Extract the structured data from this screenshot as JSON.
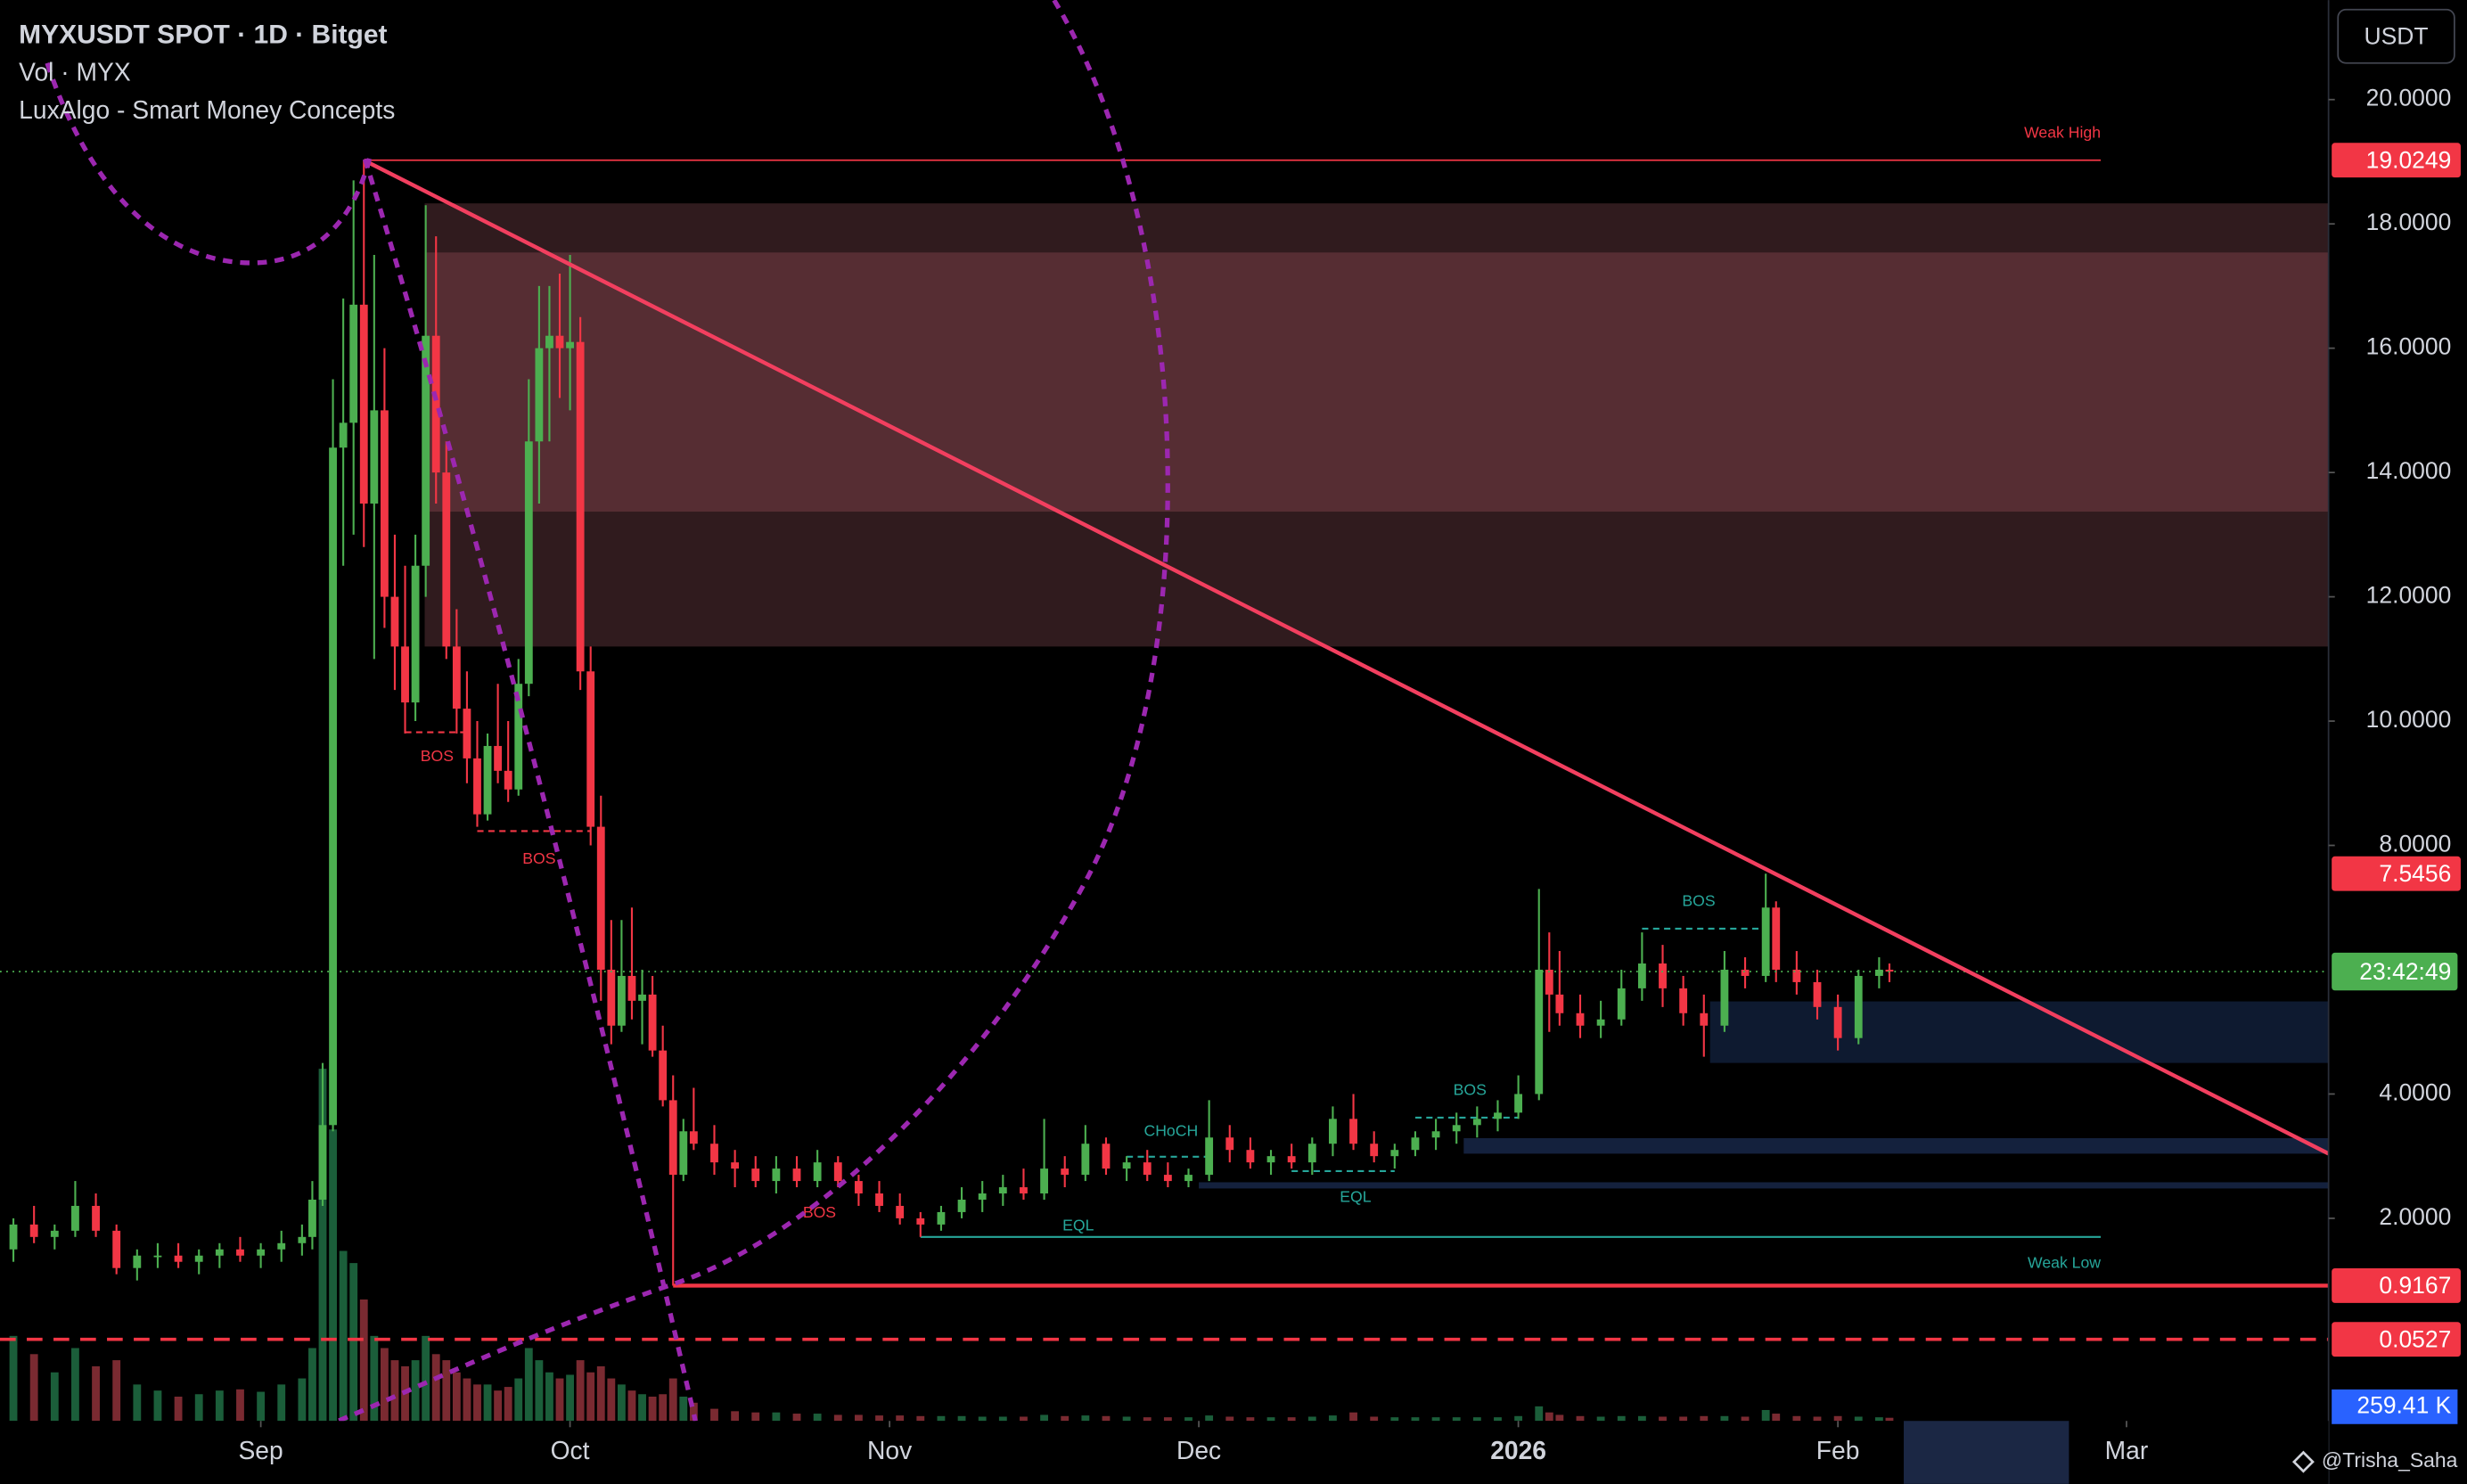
{
  "chart_data": {
    "type": "candlestick",
    "title": "MYXUSDT SPOT · 1D · Bitget",
    "volume_title": "Vol · MYX",
    "indicator": "LuxAlgo - Smart Money Concepts",
    "currency_button": "USDT",
    "watermark": "@Trisha_Saha",
    "countdown": "23:42:49",
    "up_color": "#4caf50",
    "down_color": "#f23645",
    "volume_up_color": "#1b5e3a",
    "volume_down_color": "#7a2a31",
    "x": [
      -24,
      -22,
      -20,
      -18,
      -16,
      -14,
      -12,
      -10,
      -8,
      -6,
      -4,
      -2,
      0,
      2,
      4,
      5,
      6,
      7,
      8,
      9,
      10,
      11,
      12,
      13,
      14,
      15,
      16,
      17,
      18,
      19,
      20,
      21,
      22,
      23,
      24,
      25,
      26,
      27,
      28,
      29,
      30,
      31,
      32,
      33,
      34,
      35,
      36,
      37,
      38,
      39,
      40,
      41,
      42,
      44,
      46,
      48,
      50,
      52,
      54,
      56,
      58,
      60,
      62,
      64,
      66,
      68,
      70,
      72,
      74,
      76,
      78,
      80,
      82,
      84,
      86,
      88,
      90,
      92,
      94,
      96,
      98,
      100,
      102,
      104,
      106,
      108,
      110,
      112,
      114,
      116,
      118,
      120,
      122,
      124,
      125,
      126,
      128,
      130,
      132,
      134,
      136,
      138,
      140,
      142,
      144,
      146,
      147,
      149,
      151,
      153,
      155,
      157,
      158
    ],
    "open": [
      1.5,
      1.9,
      1.7,
      1.8,
      2.2,
      1.8,
      1.2,
      1.4,
      1.4,
      1.3,
      1.4,
      1.5,
      1.4,
      1.5,
      1.6,
      1.7,
      2.3,
      3.5,
      14.4,
      14.8,
      16.7,
      13.5,
      15.0,
      12.0,
      11.2,
      10.3,
      12.5,
      16.2,
      14.0,
      11.2,
      10.2,
      9.4,
      8.5,
      9.6,
      9.2,
      8.9,
      10.6,
      14.5,
      16.0,
      16.2,
      16.0,
      16.1,
      10.8,
      8.3,
      6.0,
      5.1,
      5.9,
      5.5,
      5.6,
      4.7,
      3.9,
      2.7,
      3.4,
      3.2,
      2.9,
      2.8,
      2.6,
      2.8,
      2.6,
      2.9,
      2.6,
      2.4,
      2.2,
      2.0,
      1.9,
      2.1,
      2.3,
      2.4,
      2.5,
      2.4,
      2.8,
      2.7,
      3.2,
      2.8,
      2.9,
      2.7,
      2.6,
      2.7,
      3.3,
      3.1,
      2.9,
      3.0,
      2.9,
      3.2,
      3.6,
      3.2,
      3.0,
      3.1,
      3.3,
      3.4,
      3.5,
      3.6,
      3.7,
      4.0,
      6.0,
      5.6,
      5.3,
      5.1,
      5.2,
      5.7,
      6.1,
      5.7,
      5.3,
      5.1,
      6.0,
      5.9,
      7.0,
      6.0,
      5.8,
      5.4,
      4.9,
      5.9,
      6.0
    ],
    "high": [
      2.0,
      2.2,
      1.9,
      2.6,
      2.4,
      1.9,
      1.5,
      1.6,
      1.6,
      1.5,
      1.6,
      1.7,
      1.6,
      1.8,
      1.9,
      2.6,
      4.5,
      15.5,
      16.8,
      18.7,
      19.0249,
      17.5,
      16.0,
      13.0,
      12.5,
      13.0,
      18.3,
      17.8,
      14.5,
      11.8,
      10.8,
      10.0,
      9.8,
      10.6,
      10.0,
      11.0,
      15.5,
      17.0,
      17.0,
      17.2,
      17.5,
      16.5,
      11.2,
      8.8,
      6.8,
      6.8,
      7.0,
      6.0,
      5.9,
      5.1,
      4.3,
      3.6,
      4.1,
      3.5,
      3.1,
      3.0,
      3.0,
      3.0,
      3.1,
      3.0,
      2.7,
      2.6,
      2.4,
      2.1,
      2.2,
      2.5,
      2.6,
      2.7,
      2.8,
      3.6,
      3.0,
      3.5,
      3.3,
      3.0,
      3.1,
      2.9,
      2.8,
      3.9,
      3.5,
      3.3,
      3.1,
      3.2,
      3.3,
      3.8,
      4.0,
      3.4,
      3.2,
      3.4,
      3.6,
      3.7,
      3.8,
      3.9,
      4.3,
      7.3,
      6.6,
      6.3,
      5.6,
      5.5,
      6.0,
      6.6,
      6.4,
      5.9,
      5.6,
      6.3,
      6.2,
      7.5456,
      7.1,
      6.3,
      6.0,
      5.6,
      6.0,
      6.2,
      6.1
    ],
    "low": [
      1.3,
      1.6,
      1.5,
      1.7,
      1.7,
      1.1,
      1.0,
      1.2,
      1.2,
      1.1,
      1.2,
      1.3,
      1.2,
      1.3,
      1.4,
      1.5,
      2.2,
      3.4,
      12.5,
      13.0,
      12.8,
      11.0,
      11.5,
      10.5,
      9.8,
      10.0,
      12.0,
      13.5,
      11.0,
      9.8,
      9.0,
      8.3,
      8.4,
      9.0,
      8.7,
      8.8,
      10.4,
      13.5,
      14.5,
      15.2,
      15.0,
      10.5,
      8.0,
      5.5,
      4.8,
      5.0,
      5.2,
      4.8,
      4.6,
      3.8,
      0.9167,
      2.6,
      3.1,
      2.7,
      2.5,
      2.5,
      2.4,
      2.5,
      2.5,
      2.5,
      2.2,
      2.1,
      1.9,
      1.7,
      1.8,
      2.0,
      2.1,
      2.2,
      2.3,
      2.3,
      2.5,
      2.6,
      2.7,
      2.6,
      2.6,
      2.5,
      2.5,
      2.6,
      2.9,
      2.8,
      2.7,
      2.8,
      2.7,
      3.0,
      3.1,
      2.9,
      2.8,
      3.0,
      3.1,
      3.2,
      3.3,
      3.4,
      3.6,
      3.9,
      5.0,
      5.1,
      4.9,
      4.9,
      5.1,
      5.5,
      5.4,
      5.1,
      4.6,
      5.0,
      5.7,
      5.8,
      5.8,
      5.6,
      5.2,
      4.7,
      4.8,
      5.7,
      5.8
    ],
    "close": [
      1.9,
      1.7,
      1.8,
      2.2,
      1.8,
      1.2,
      1.4,
      1.4,
      1.3,
      1.4,
      1.5,
      1.4,
      1.5,
      1.6,
      1.7,
      2.3,
      3.5,
      14.4,
      14.8,
      16.7,
      13.5,
      15.0,
      12.0,
      11.2,
      10.3,
      12.5,
      16.2,
      14.0,
      11.2,
      10.2,
      9.4,
      8.5,
      9.6,
      9.2,
      8.9,
      10.6,
      14.5,
      16.0,
      16.2,
      16.0,
      16.1,
      10.8,
      8.3,
      6.0,
      5.1,
      5.9,
      5.5,
      5.6,
      4.7,
      3.9,
      2.7,
      3.4,
      3.2,
      2.9,
      2.8,
      2.6,
      2.8,
      2.6,
      2.9,
      2.6,
      2.4,
      2.2,
      2.0,
      1.9,
      2.1,
      2.3,
      2.4,
      2.5,
      2.4,
      2.8,
      2.7,
      3.2,
      2.8,
      2.9,
      2.7,
      2.6,
      2.7,
      3.3,
      3.1,
      2.9,
      3.0,
      2.9,
      3.2,
      3.6,
      3.2,
      3.0,
      3.1,
      3.3,
      3.4,
      3.5,
      3.6,
      3.7,
      4.0,
      6.0,
      5.6,
      5.3,
      5.1,
      5.2,
      5.7,
      6.1,
      5.7,
      5.3,
      5.1,
      6.0,
      5.9,
      7.0,
      6.0,
      5.8,
      5.4,
      4.9,
      5.9,
      6.0,
      5.97
    ],
    "volume": {
      "values": [
        7000,
        5500,
        4000,
        6000,
        4500,
        5000,
        3000,
        2500,
        2000,
        2200,
        2500,
        2600,
        2400,
        3000,
        3500,
        6000,
        29000,
        24000,
        14000,
        13000,
        10000,
        7000,
        6000,
        5000,
        4500,
        5000,
        7000,
        5500,
        5000,
        4000,
        3500,
        3000,
        3000,
        2500,
        2800,
        3500,
        6000,
        5000,
        4000,
        3500,
        3800,
        5000,
        4000,
        4500,
        3500,
        3000,
        2500,
        2200,
        2000,
        2200,
        3500,
        2000,
        1500,
        1000,
        800,
        700,
        700,
        600,
        600,
        500,
        500,
        450,
        450,
        400,
        400,
        400,
        350,
        350,
        350,
        500,
        400,
        450,
        400,
        350,
        300,
        300,
        300,
        450,
        350,
        300,
        300,
        300,
        350,
        450,
        700,
        350,
        300,
        300,
        300,
        300,
        300,
        300,
        400,
        1200,
        700,
        500,
        400,
        350,
        400,
        400,
        350,
        350,
        400,
        400,
        350,
        900,
        600,
        400,
        350,
        400,
        350,
        300,
        259.41
      ],
      "last_label": "259.41 K",
      "ylim": [
        0,
        117000
      ]
    },
    "xlim": [
      -25.3,
      200.6
    ],
    "xticks": [
      {
        "value": 0,
        "label": "Sep"
      },
      {
        "value": 30,
        "label": "Oct"
      },
      {
        "value": 61,
        "label": "Nov"
      },
      {
        "value": 91,
        "label": "Dec"
      },
      {
        "value": 122,
        "label": "2026"
      },
      {
        "value": 153,
        "label": "Feb"
      },
      {
        "value": 181,
        "label": "Mar"
      }
    ],
    "ylim": [
      -1.26,
      21.6
    ],
    "yticks": [
      {
        "value": 2,
        "label": "2.0000"
      },
      {
        "value": 4,
        "label": "4.0000"
      },
      {
        "value": 8,
        "label": "8.0000"
      },
      {
        "value": 10,
        "label": "10.0000"
      },
      {
        "value": 12,
        "label": "12.0000"
      },
      {
        "value": 14,
        "label": "14.0000"
      },
      {
        "value": 16,
        "label": "16.0000"
      },
      {
        "value": 18,
        "label": "18.0000"
      },
      {
        "value": 20,
        "label": "20.0000"
      }
    ],
    "zones": [
      {
        "x0": 15.9,
        "y0": 11.2,
        "y1": 18.33,
        "color": "#301b1e"
      },
      {
        "x0": 15.9,
        "y0": 13.37,
        "y1": 17.54,
        "color": "#562d33"
      },
      {
        "x0": 140.6,
        "y0": 4.5,
        "y1": 5.49,
        "color": "#0e1a30"
      },
      {
        "x0": 116.7,
        "y0": 3.04,
        "y1": 3.29,
        "color": "#14213d"
      },
      {
        "x0": 91,
        "y0": 2.48,
        "y1": 2.58,
        "color": "#14213d"
      }
    ],
    "trendline": {
      "x": [
        10,
        200.6
      ],
      "y": [
        19.0249,
        3.04
      ],
      "color": "#f23f5f"
    },
    "levels": [
      {
        "value": 19.0249,
        "x0": 10,
        "x1": 178.5,
        "color": "#f23645",
        "width": 1,
        "dashed": false,
        "axis_label": true
      },
      {
        "value": 7.5456,
        "x0": 146,
        "x1": 146,
        "color": "#f23645",
        "width": 0,
        "dashed": false,
        "axis_label": true
      },
      {
        "value": 0.9167,
        "x0": 40,
        "x1": 200.6,
        "color": "#f23645",
        "width": 2.5,
        "dashed": false,
        "axis_label": true
      },
      {
        "value": 0.0527,
        "x0": -25.3,
        "x1": 200.6,
        "color": "#f23645",
        "width": 2,
        "dashed": true,
        "axis_label": true
      }
    ],
    "structure_lines": [
      {
        "x0": 14,
        "x1": 20,
        "y": 9.82,
        "color": "#f23645"
      },
      {
        "x0": 21,
        "x1": 32,
        "y": 8.23,
        "color": "#f23645"
      },
      {
        "x0": 134,
        "x1": 146,
        "y": 6.66,
        "color": "#26a69a"
      },
      {
        "x0": 112,
        "x1": 122,
        "y": 3.62,
        "color": "#26a69a"
      },
      {
        "x0": 84,
        "x1": 92,
        "y": 2.99,
        "color": "#26a69a"
      },
      {
        "x0": 100,
        "x1": 110,
        "y": 2.76,
        "color": "#26a69a"
      },
      {
        "x0": 64,
        "x1": 178.5,
        "y": 1.7,
        "color": "#26a69a"
      }
    ],
    "annotations": [
      {
        "text": "Weak High",
        "x": 178.5,
        "y": 19.45,
        "color": "#f23645"
      },
      {
        "text": "Weak Low",
        "x": 178.5,
        "y": 1.27,
        "color": "#26a69a"
      },
      {
        "text": "BOS",
        "x": 17.1,
        "y": 9.42,
        "color": "#f23645"
      },
      {
        "text": "BOS",
        "x": 27,
        "y": 7.77,
        "color": "#f23645"
      },
      {
        "text": "BOS",
        "x": 54.2,
        "y": 2.08,
        "color": "#f23645"
      },
      {
        "text": "EQL",
        "x": 79.3,
        "y": 1.87,
        "color": "#26a69a"
      },
      {
        "text": "CHoCH",
        "x": 88.3,
        "y": 3.39,
        "color": "#26a69a"
      },
      {
        "text": "EQL",
        "x": 106.2,
        "y": 2.33,
        "color": "#26a69a"
      },
      {
        "text": "BOS",
        "x": 117.3,
        "y": 4.05,
        "color": "#26a69a"
      },
      {
        "text": "BOS",
        "x": 139.5,
        "y": 7.09,
        "color": "#26a69a"
      }
    ]
  }
}
